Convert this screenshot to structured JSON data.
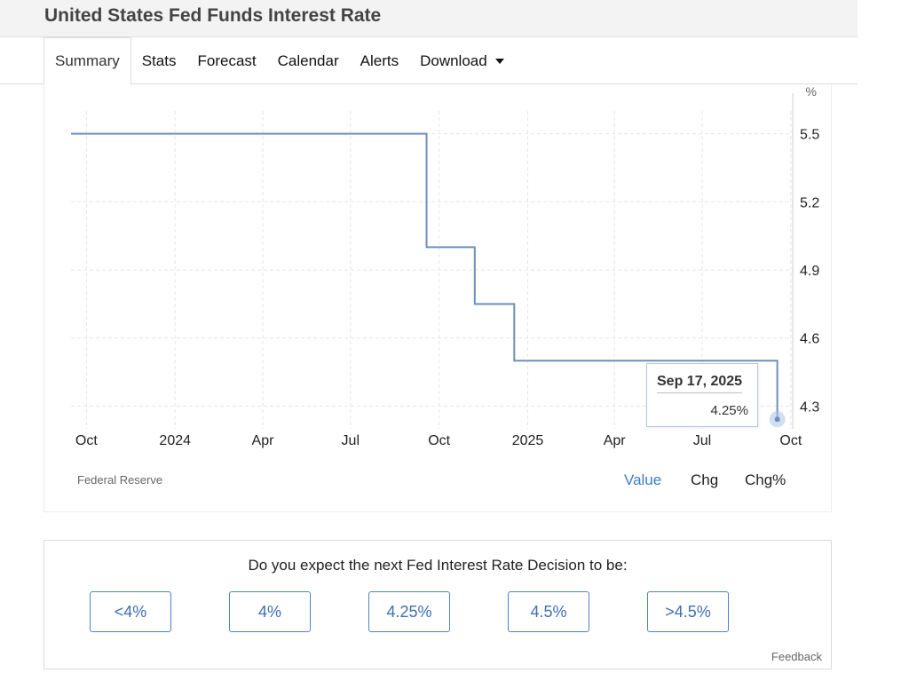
{
  "page": {
    "title": "United States Fed Funds Interest Rate"
  },
  "tabs": [
    {
      "label": "Summary",
      "active": true
    },
    {
      "label": "Stats"
    },
    {
      "label": "Forecast"
    },
    {
      "label": "Calendar"
    },
    {
      "label": "Alerts"
    },
    {
      "label": "Download",
      "has_dropdown": true
    }
  ],
  "chart_data": {
    "type": "line",
    "step": true,
    "unit_label": "%",
    "title": "",
    "xlabel": "",
    "ylabel": "",
    "x_range": [
      "2023-09-15",
      "2025-10-03"
    ],
    "ylim": [
      4.2,
      5.6
    ],
    "y_ticks": [
      4.3,
      4.6,
      4.9,
      5.2,
      5.5
    ],
    "y_tick_labels": [
      "4.3",
      "4.6",
      "4.9",
      "5.2",
      "5.5"
    ],
    "x_ticks": [
      {
        "date": "2023-10-01",
        "label": "Oct"
      },
      {
        "date": "2024-01-01",
        "label": "2024"
      },
      {
        "date": "2024-04-01",
        "label": "Apr"
      },
      {
        "date": "2024-07-01",
        "label": "Jul"
      },
      {
        "date": "2024-10-01",
        "label": "Oct"
      },
      {
        "date": "2025-01-01",
        "label": "2025"
      },
      {
        "date": "2025-04-01",
        "label": "Apr"
      },
      {
        "date": "2025-07-01",
        "label": "Jul"
      },
      {
        "date": "2025-10-01",
        "label": "Oct"
      }
    ],
    "grid": true,
    "line_color": "#6d8fbd",
    "series": [
      {
        "points": [
          {
            "x": "2023-09-15",
            "y": 5.5
          },
          {
            "x": "2024-09-18",
            "y": 5.0
          },
          {
            "x": "2024-11-07",
            "y": 4.75
          },
          {
            "x": "2024-12-18",
            "y": 4.5
          },
          {
            "x": "2025-09-17",
            "y": 4.25
          }
        ]
      }
    ],
    "tooltip": {
      "date": "Sep 17, 2025",
      "value": "4.25%"
    }
  },
  "source": "Federal Reserve",
  "view_modes": [
    {
      "label": "Value",
      "active": true
    },
    {
      "label": "Chg"
    },
    {
      "label": "Chg%"
    }
  ],
  "poll": {
    "question": "Do you expect the next Fed Interest Rate Decision to be:",
    "options": [
      "<4%",
      "4%",
      "4.25%",
      "4.5%",
      ">4.5%"
    ],
    "feedback": "Feedback"
  },
  "colors": {
    "accent": "#3d7cc0",
    "button_text": "#3d6fb4",
    "button_border": "#4f82c2"
  }
}
